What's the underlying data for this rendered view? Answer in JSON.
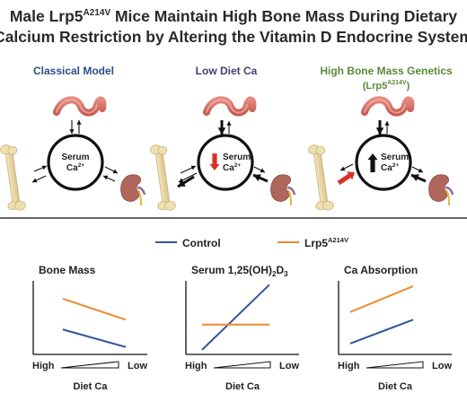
{
  "title": {
    "line1_a": "Male Lrp5",
    "line1_sup": "A214V",
    "line1_b": " Mice Maintain High Bone Mass During Dietary",
    "line2": "Calcium Restriction by Altering the Vitamin D Endocrine System"
  },
  "models": [
    {
      "title": "Classical Model",
      "color": "#2c4e86"
    },
    {
      "title": "Low Diet Ca",
      "color": "#4b3a77"
    },
    {
      "title": "High Bone Mass Genetics",
      "subtitle_a": "(Lrp5",
      "subtitle_sup": "A214V",
      "subtitle_b": ")",
      "color": "#5a8a3a"
    }
  ],
  "serum": {
    "label": "Serum",
    "ion": "Ca",
    "charge": "2+"
  },
  "legend": {
    "control": {
      "label": "Control",
      "color": "#2f5597"
    },
    "lrp5": {
      "label_a": "Lrp5",
      "label_sup": "A214V",
      "color": "#ed8a2e"
    }
  },
  "axis": {
    "high": "High",
    "low": "Low",
    "xlabel": "Diet Ca"
  },
  "chart_data": [
    {
      "type": "line",
      "title": "Bone Mass",
      "xlabel": "Diet Ca",
      "x": [
        "High",
        "Low"
      ],
      "ylim": [
        0,
        1
      ],
      "series": [
        {
          "name": "Control",
          "values": [
            0.33,
            0.08
          ]
        },
        {
          "name": "Lrp5A214V",
          "values": [
            0.77,
            0.47
          ]
        }
      ]
    },
    {
      "type": "line",
      "title": "Serum 1,25(OH)2D3",
      "title_a": "Serum 1,25(OH)",
      "title_sub1": "2",
      "title_mid": "D",
      "title_sub2": "3",
      "xlabel": "Diet Ca",
      "x": [
        "High",
        "Low"
      ],
      "ylim": [
        0,
        1
      ],
      "series": [
        {
          "name": "Control",
          "values": [
            0.04,
            0.97
          ]
        },
        {
          "name": "Lrp5A214V",
          "values": [
            0.4,
            0.4
          ]
        }
      ]
    },
    {
      "type": "line",
      "title": "Ca Absorption",
      "xlabel": "Diet Ca",
      "x": [
        "High",
        "Low"
      ],
      "ylim": [
        0,
        1
      ],
      "series": [
        {
          "name": "Control",
          "values": [
            0.13,
            0.47
          ]
        },
        {
          "name": "Lrp5A214V",
          "values": [
            0.58,
            0.95
          ]
        }
      ]
    }
  ]
}
